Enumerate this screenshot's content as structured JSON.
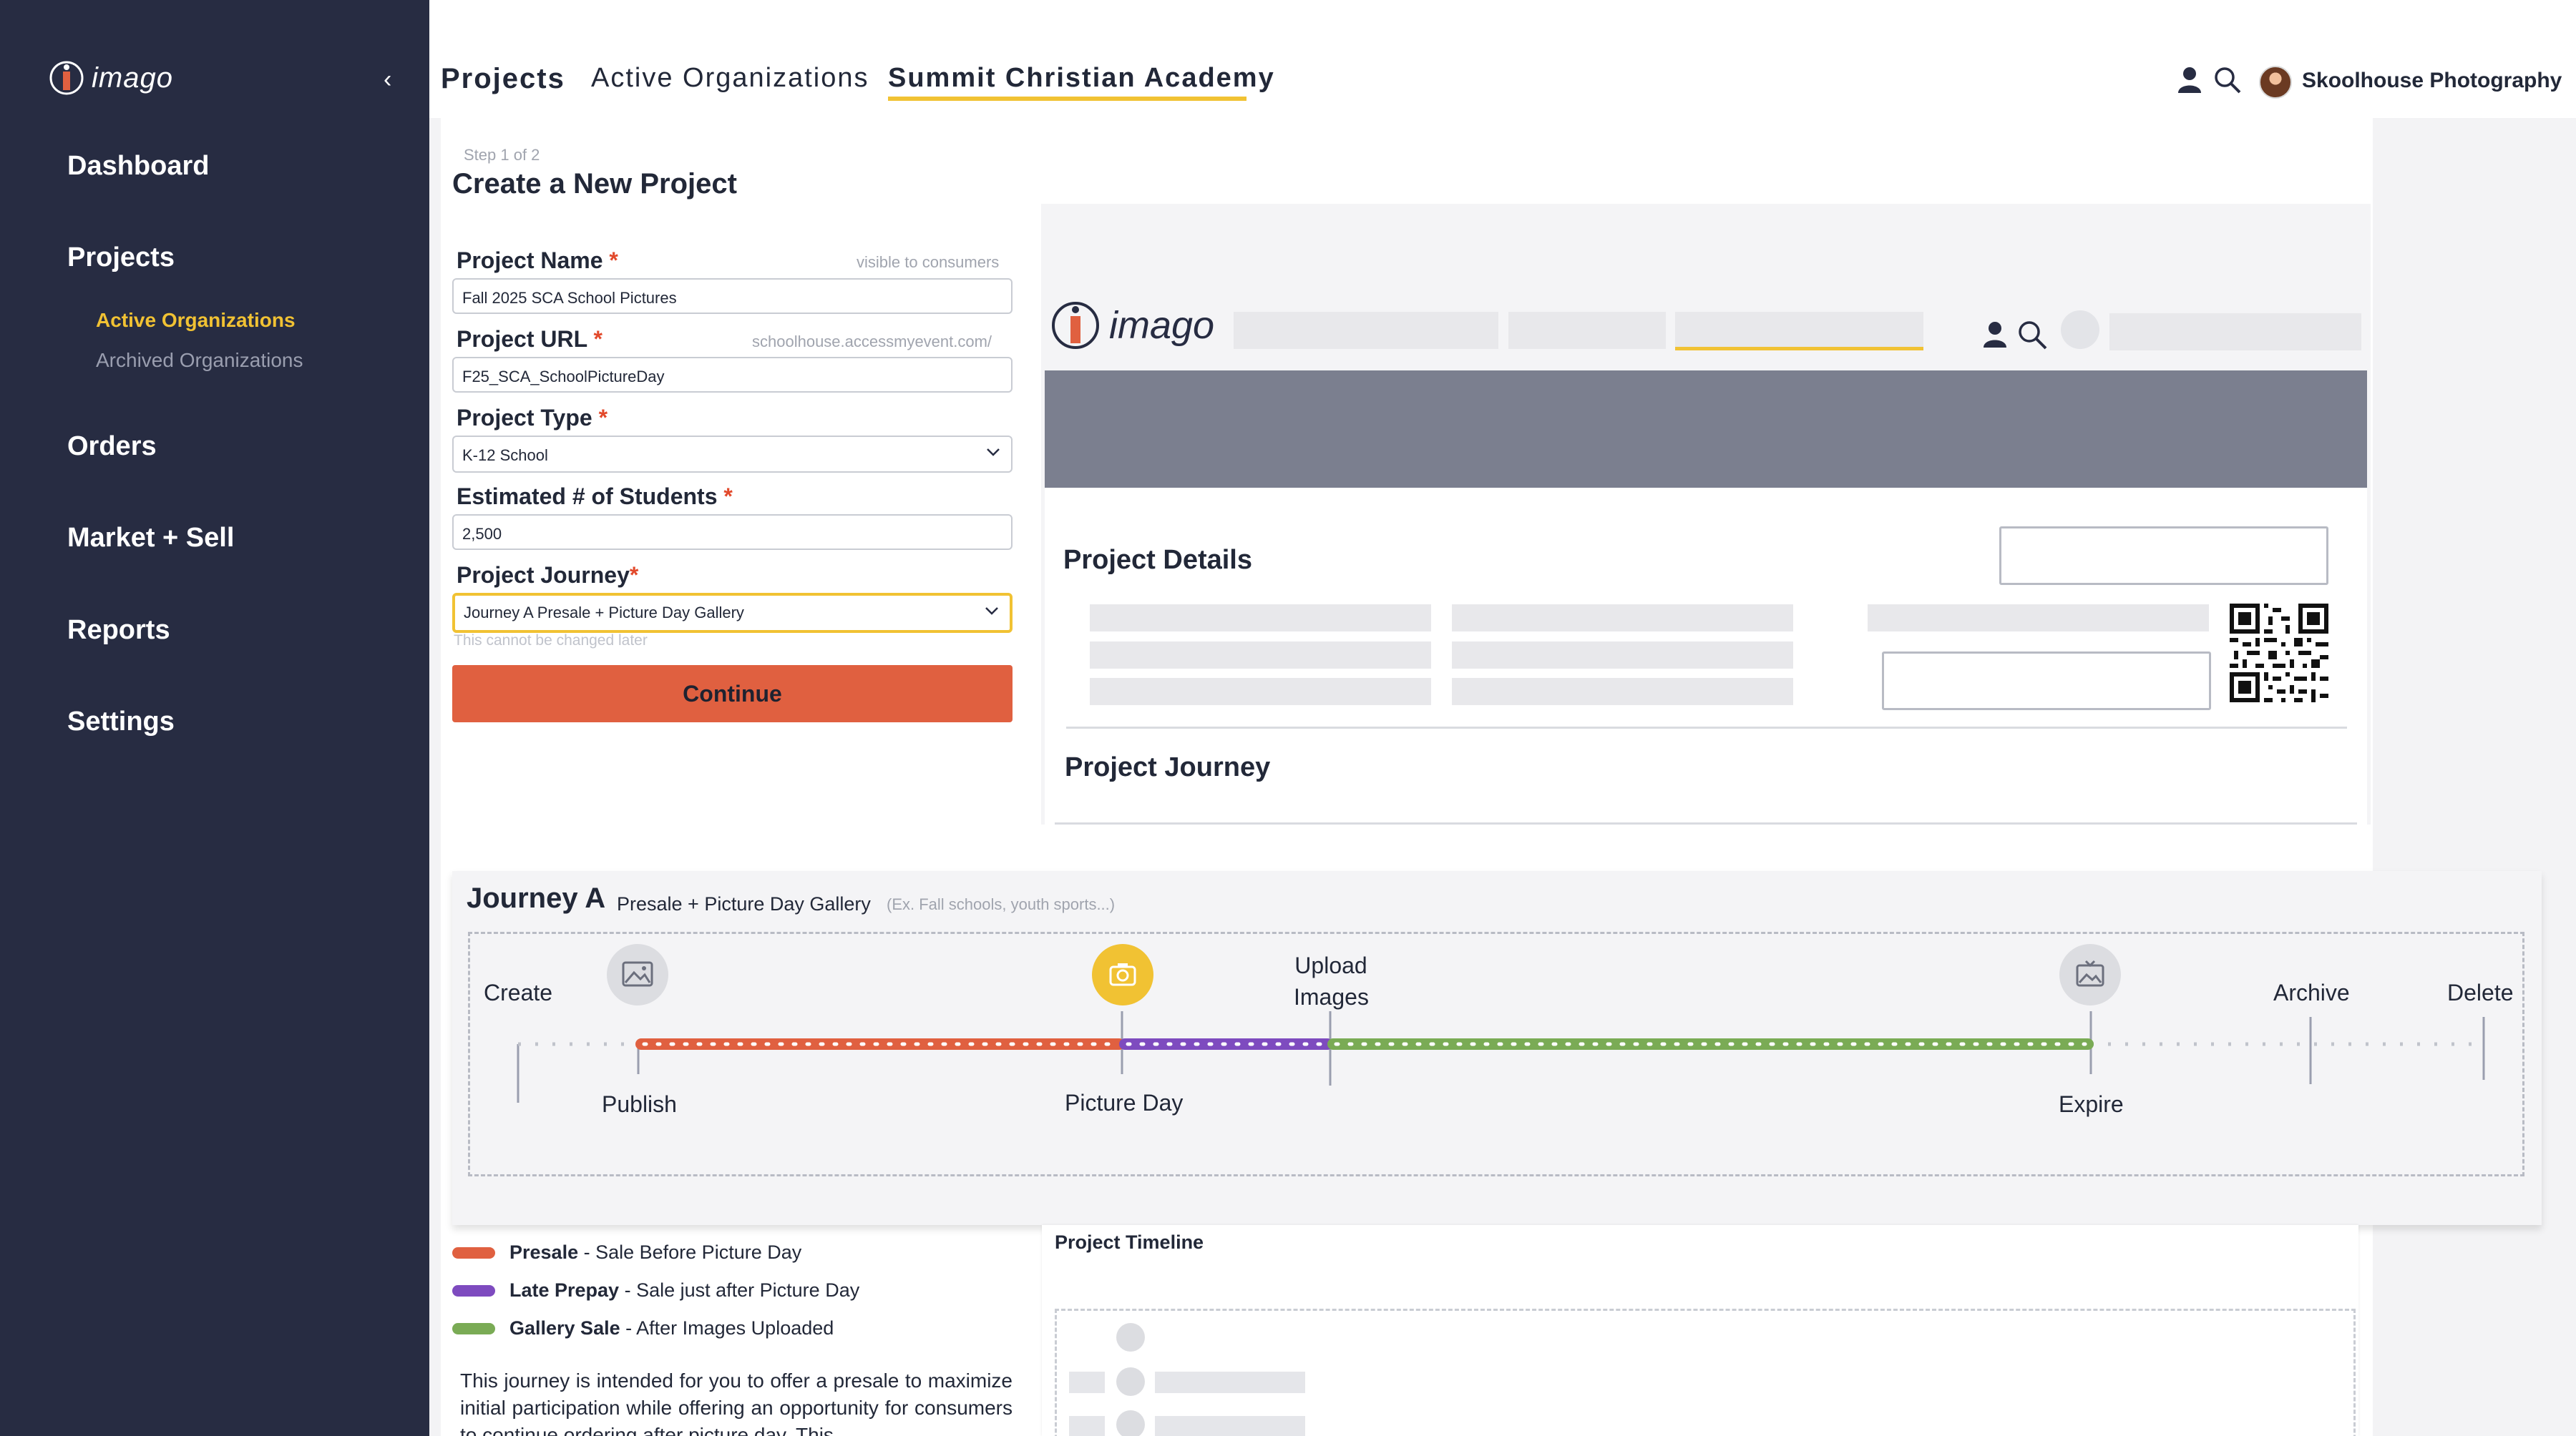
{
  "sidebar": {
    "brand": "imago",
    "nav": {
      "dashboard": "Dashboard",
      "projects": "Projects",
      "active_orgs": "Active Organizations",
      "archived_orgs": "Archived Organizations",
      "orders": "Orders",
      "market_sell": "Market + Sell",
      "reports": "Reports",
      "settings": "Settings"
    }
  },
  "header": {
    "breadcrumb": [
      "Projects",
      "Active Organizations",
      "Summit Christian Academy"
    ],
    "studio_name": "Skoolhouse Photography"
  },
  "form": {
    "step": "Step 1 of 2",
    "title": "Create a New Project",
    "project_name": {
      "label": "Project Name",
      "hint": "visible to consumers",
      "value": "Fall 2025 SCA School Pictures"
    },
    "project_url": {
      "label": "Project URL",
      "hint": "schoolhouse.accessmyevent.com/",
      "value": "F25_SCA_SchoolPictureDay"
    },
    "project_type": {
      "label": "Project Type",
      "value": "K-12 School"
    },
    "students": {
      "label": "Estimated # of Students",
      "value": "2,500"
    },
    "journey": {
      "label": "Project Journey",
      "value": "Journey A Presale + Picture Day Gallery",
      "note": "This cannot be changed later"
    },
    "required_mark": "*",
    "continue_label": "Continue"
  },
  "preview": {
    "brand": "imago",
    "details_heading": "Project Details",
    "journey_heading": "Project Journey"
  },
  "journey": {
    "title": "Journey A",
    "subtitle": "Presale + Picture Day Gallery",
    "example": "(Ex. Fall schools, youth sports...)",
    "top_labels": {
      "create": "Create",
      "upload_line1": "Upload",
      "upload_line2": "Images",
      "archive": "Archive",
      "delete": "Delete"
    },
    "bottom_labels": {
      "publish": "Publish",
      "picture_day": "Picture Day",
      "expire": "Expire"
    },
    "colors": {
      "presale": "#e06040",
      "late_prepay": "#7e4bbf",
      "gallery": "#7aab55",
      "picture_day_circle": "#f1c233"
    }
  },
  "legend": [
    {
      "name": "Presale",
      "desc": " - Sale Before Picture Day",
      "color": "#e06040"
    },
    {
      "name": "Late Prepay",
      "desc": " - Sale just after Picture Day",
      "color": "#7e4bbf"
    },
    {
      "name": "Gallery Sale",
      "desc": " - After Images Uploaded",
      "color": "#7aab55"
    }
  ],
  "description": "This journey is intended for you to offer a presale to maximize initial participation while offering an opportunity for consumers to continue ordering after picture day. This",
  "timeline_preview": {
    "title": "Project Timeline"
  }
}
